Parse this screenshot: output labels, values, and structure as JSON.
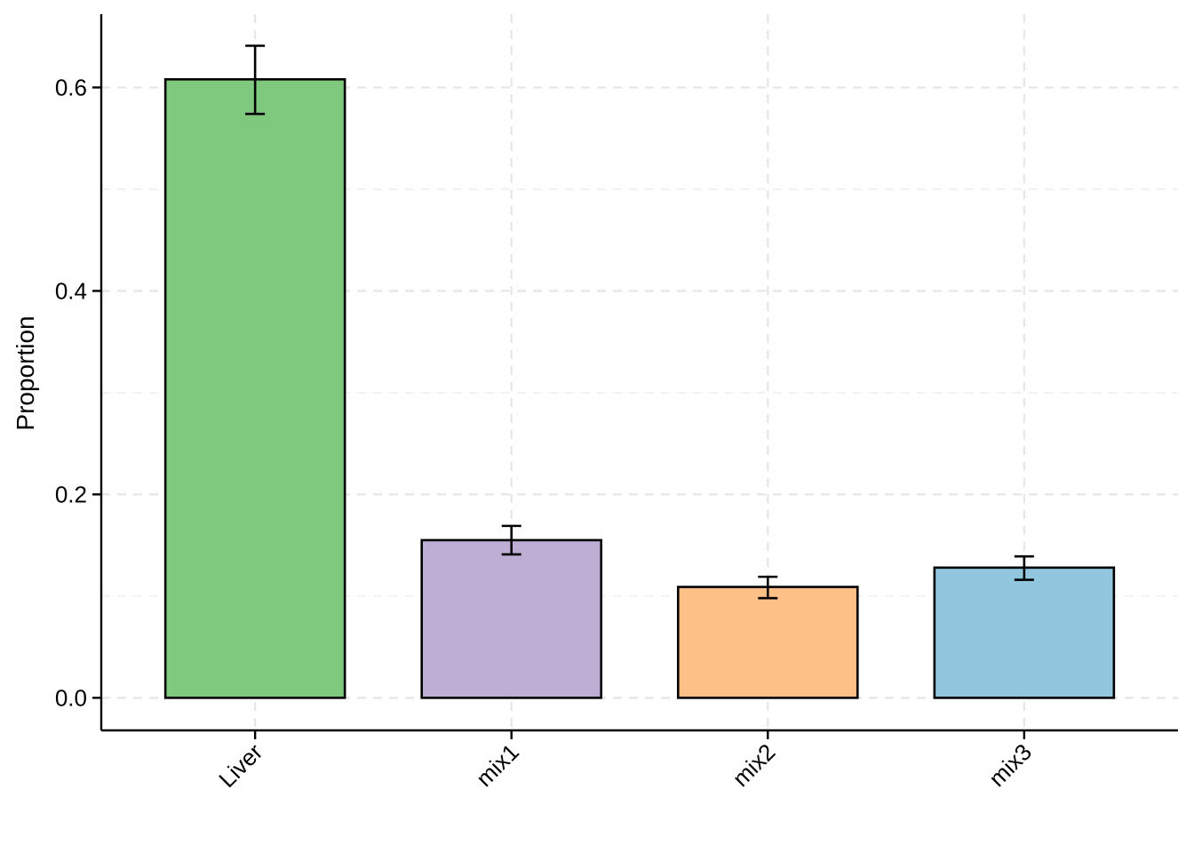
{
  "chart_data": {
    "type": "bar",
    "categories": [
      "Liver",
      "mix1",
      "mix2",
      "mix3"
    ],
    "values": [
      0.608,
      0.155,
      0.109,
      0.128
    ],
    "error_low": [
      0.574,
      0.141,
      0.098,
      0.116
    ],
    "error_high": [
      0.641,
      0.169,
      0.119,
      0.139
    ],
    "colors": [
      "#7fc97f",
      "#beaed4",
      "#fdc086",
      "#92c5de"
    ],
    "ylabel": "Proportion",
    "xlabel": "",
    "ylim": [
      -0.032,
      0.672
    ],
    "yticks": [
      0.0,
      0.2,
      0.4,
      0.6
    ],
    "ytick_labels": [
      "0.0",
      "0.2",
      "0.4",
      "0.6"
    ],
    "grid": "dashed",
    "legend": "none"
  }
}
